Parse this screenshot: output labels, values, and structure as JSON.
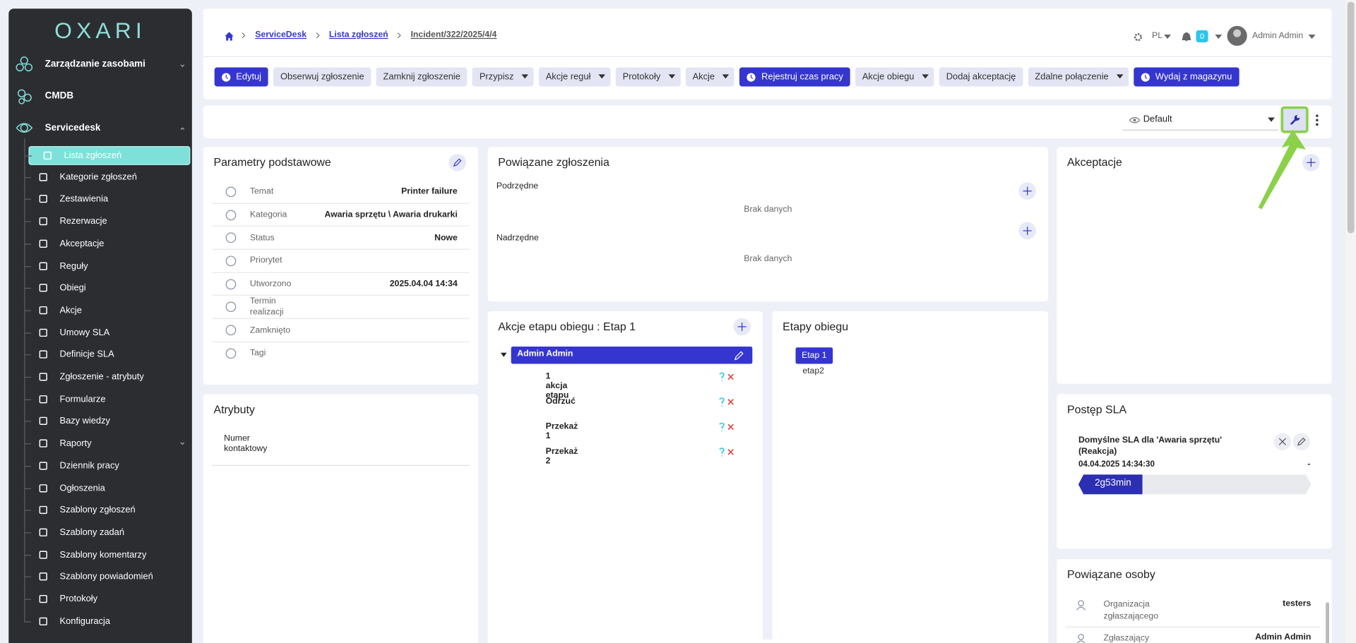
{
  "sidebar": {
    "logo": "OXARI",
    "sections": [
      "Zarządzanie zasobami",
      "CMDB",
      "Servicedesk"
    ],
    "items": [
      {
        "label": "Lista zgłoszeń",
        "active": true
      },
      {
        "label": "Kategorie zgłoszeń"
      },
      {
        "label": "Zestawienia"
      },
      {
        "label": "Rezerwacje"
      },
      {
        "label": "Akceptacje"
      },
      {
        "label": "Reguły"
      },
      {
        "label": "Obiegi"
      },
      {
        "label": "Akcje"
      },
      {
        "label": "Umowy SLA"
      },
      {
        "label": "Definicje SLA"
      },
      {
        "label": "Zgłoszenie - atrybuty"
      },
      {
        "label": "Formularze"
      },
      {
        "label": "Bazy wiedzy"
      },
      {
        "label": "Raporty"
      },
      {
        "label": "Dziennik pracy"
      },
      {
        "label": "Ogłoszenia"
      },
      {
        "label": "Szablony zgłoszeń"
      },
      {
        "label": "Szablony zadań"
      },
      {
        "label": "Szablony komentarzy"
      },
      {
        "label": "Szablony powiadomień"
      },
      {
        "label": "Protokoły"
      },
      {
        "label": "Konfiguracja"
      }
    ]
  },
  "breadcrumb": {
    "items": [
      "ServiceDesk",
      "Lista zgłoszeń",
      "Incident/322/2025/4/4"
    ]
  },
  "topbar": {
    "language": "PL",
    "notifications": 0,
    "user": "Admin Admin"
  },
  "toolbar": [
    {
      "label": "Edytuj",
      "primary": true
    },
    {
      "label": "Obserwuj zgłoszenie"
    },
    {
      "label": "Zamknij zgłoszenie"
    },
    {
      "label": "Przypisz",
      "dropdown": true
    },
    {
      "label": "Akcje reguł",
      "dropdown": true
    },
    {
      "label": "Protokoły",
      "dropdown": true
    },
    {
      "label": "Akcje",
      "dropdown": true
    },
    {
      "label": "Rejestruj czas pracy",
      "primary": true
    },
    {
      "label": "Akcje obiegu",
      "dropdown": true
    },
    {
      "label": "Dodaj akceptację"
    },
    {
      "label": "Zdalne połączenie",
      "dropdown": true
    },
    {
      "label": "Wydaj z magazynu",
      "primary": true
    }
  ],
  "view": {
    "selected": "Default"
  },
  "basic_params": {
    "title": "Parametry podstawowe",
    "rows": [
      {
        "label": "Temat",
        "value": "Printer failure"
      },
      {
        "label": "Kategoria",
        "value": "Awaria sprzętu \\ Awaria drukarki"
      },
      {
        "label": "Status",
        "value": "Nowe"
      },
      {
        "label": "Priorytet"
      },
      {
        "label": "Utworzono",
        "value": "2025.04.04 14:34"
      },
      {
        "label": "Termin realizacji"
      },
      {
        "label": "Zamknięto"
      },
      {
        "label": "Tagi"
      }
    ]
  },
  "attributes": {
    "title": "Atrybuty",
    "rows": [
      {
        "label": "Numer kontaktowy"
      }
    ]
  },
  "related_tickets": {
    "title": "Powiązane zgłoszenia",
    "child": {
      "label": "Podrzędne",
      "empty": "Brak danych"
    },
    "parent": {
      "label": "Nadrzędne",
      "empty": "Brak danych"
    }
  },
  "stage_actions": {
    "title": "Akcje etapu obiegu : Etap 1",
    "assignee": "Admin Admin",
    "actions": [
      "1 akcja etapu",
      "Odrzuć",
      "Przekaż 1",
      "Przekaż 2"
    ]
  },
  "workflow_stages": {
    "title": "Etapy obiegu",
    "stages": [
      {
        "label": "Etap 1",
        "current": true
      },
      {
        "label": "etap2"
      }
    ]
  },
  "acceptances": {
    "title": "Akceptacje"
  },
  "sla_progress": {
    "title": "Postęp SLA",
    "name": "Domyślne SLA dla 'Awaria sprzętu' (Reakcja)",
    "start": "04.04.2025 14:34:30",
    "end": "-",
    "elapsed": "2g53min"
  },
  "related_people": {
    "title": "Powiązane osoby",
    "rows": [
      {
        "label": "Organizacja zgłaszającego",
        "value": "testers"
      },
      {
        "label": "Zgłaszający",
        "value": "Admin Admin"
      }
    ]
  }
}
